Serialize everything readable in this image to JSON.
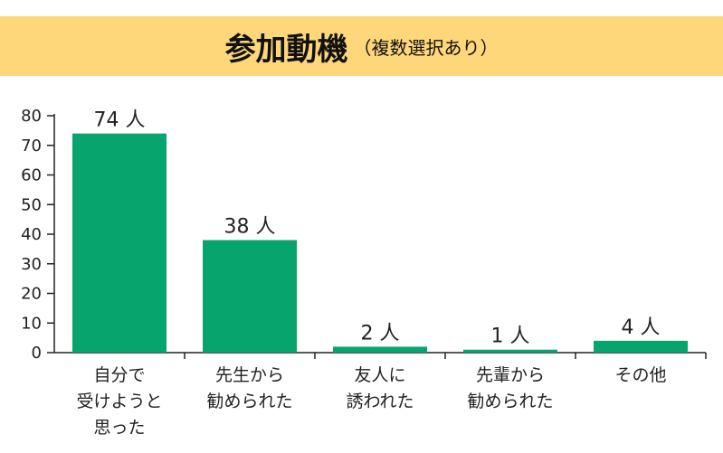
{
  "colors": {
    "banner": "#fdd77a",
    "bar": "#07a46d",
    "axis": "#222222"
  },
  "title": {
    "main": "参加動機",
    "sub": "（複数選択あり）"
  },
  "chart_data": {
    "type": "bar",
    "categories": [
      [
        "自分で",
        "受けようと",
        "思った"
      ],
      [
        "先生から",
        "勧められた"
      ],
      [
        "友人に",
        "誘われた"
      ],
      [
        "先輩から",
        "勧められた"
      ],
      [
        "その他"
      ]
    ],
    "values": [
      74,
      38,
      2,
      1,
      4
    ],
    "data_labels": [
      "74 人",
      "38 人",
      "2 人",
      "1 人",
      "4 人"
    ],
    "yticks": [
      "0",
      "10",
      "20",
      "30",
      "40",
      "50",
      "60",
      "70",
      "80"
    ],
    "ylim": [
      0,
      80
    ],
    "grid": false,
    "legend": "none"
  }
}
